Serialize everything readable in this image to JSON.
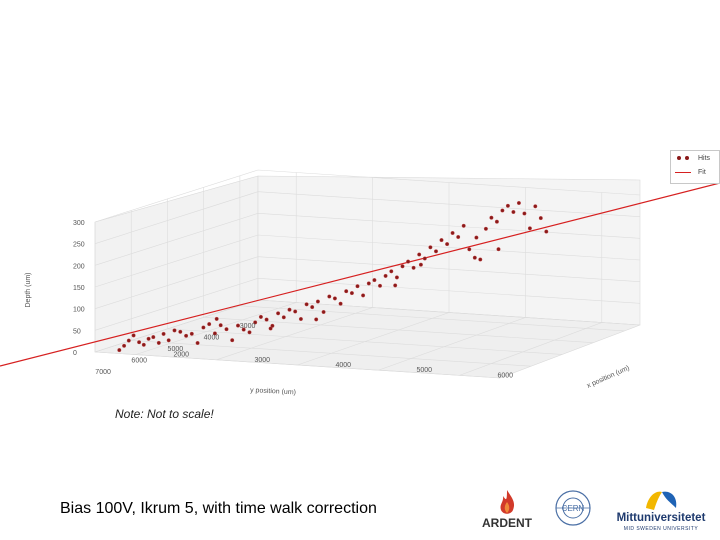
{
  "chart_data": {
    "type": "scatter",
    "projection": "3d",
    "xlabel": "x position (um)",
    "ylabel": "y position (um)",
    "zlabel": "Depth (um)",
    "x_ticks": [
      "2000",
      "3000",
      "4000",
      "5000",
      "6000"
    ],
    "y_ticks": [
      "7000",
      "6000",
      "5000",
      "4000",
      "3000"
    ],
    "z_ticks": [
      "0",
      "50",
      "100",
      "150",
      "200",
      "250",
      "300"
    ],
    "legend": {
      "placement": "top-right",
      "entries": [
        "Hits",
        "Fit"
      ]
    },
    "grid": true,
    "series": [
      {
        "name": "Hits",
        "marker": "dot",
        "color": "#8b1a1a",
        "points": [
          [
            1800,
            7000,
            8
          ],
          [
            1850,
            6980,
            18
          ],
          [
            1900,
            6960,
            30
          ],
          [
            1950,
            6940,
            42
          ],
          [
            2000,
            6900,
            26
          ],
          [
            2050,
            6880,
            20
          ],
          [
            2100,
            6860,
            34
          ],
          [
            2150,
            6840,
            38
          ],
          [
            2200,
            6800,
            24
          ],
          [
            2250,
            6780,
            45
          ],
          [
            2300,
            6750,
            30
          ],
          [
            2350,
            6700,
            52
          ],
          [
            2400,
            6650,
            48
          ],
          [
            2450,
            6600,
            38
          ],
          [
            2500,
            6550,
            42
          ],
          [
            2550,
            6500,
            20
          ],
          [
            2600,
            6450,
            55
          ],
          [
            2650,
            6400,
            62
          ],
          [
            2700,
            6350,
            40
          ],
          [
            2750,
            6300,
            58
          ],
          [
            2800,
            6250,
            48
          ],
          [
            2850,
            6200,
            22
          ],
          [
            2900,
            6150,
            55
          ],
          [
            2950,
            6100,
            45
          ],
          [
            3000,
            6050,
            38
          ],
          [
            3050,
            6000,
            60
          ],
          [
            3100,
            5950,
            72
          ],
          [
            3150,
            5900,
            65
          ],
          [
            3200,
            5850,
            50
          ],
          [
            3250,
            5800,
            78
          ],
          [
            3300,
            5750,
            68
          ],
          [
            3350,
            5700,
            85
          ],
          [
            3400,
            5650,
            80
          ],
          [
            3450,
            5600,
            62
          ],
          [
            3500,
            5550,
            95
          ],
          [
            3550,
            5500,
            88
          ],
          [
            3600,
            5450,
            100
          ],
          [
            3650,
            5400,
            75
          ],
          [
            3700,
            5350,
            110
          ],
          [
            3750,
            5300,
            105
          ],
          [
            3800,
            5250,
            92
          ],
          [
            3850,
            5200,
            120
          ],
          [
            3900,
            5150,
            115
          ],
          [
            3950,
            5100,
            130
          ],
          [
            4000,
            5050,
            108
          ],
          [
            4050,
            5000,
            135
          ],
          [
            4100,
            4950,
            142
          ],
          [
            4150,
            4900,
            128
          ],
          [
            4200,
            4850,
            150
          ],
          [
            4250,
            4800,
            160
          ],
          [
            4300,
            4750,
            145
          ],
          [
            4350,
            4700,
            170
          ],
          [
            4400,
            4650,
            180
          ],
          [
            4450,
            4600,
            165
          ],
          [
            4500,
            4550,
            195
          ],
          [
            4550,
            4500,
            185
          ],
          [
            4600,
            4450,
            210
          ],
          [
            4650,
            4400,
            200
          ],
          [
            4700,
            4350,
            225
          ],
          [
            4750,
            4300,
            215
          ],
          [
            4800,
            4250,
            240
          ],
          [
            4850,
            4200,
            230
          ],
          [
            4900,
            4150,
            255
          ],
          [
            4950,
            4100,
            200
          ],
          [
            5000,
            4050,
            180
          ],
          [
            5050,
            4000,
            175
          ],
          [
            5100,
            3950,
            245
          ],
          [
            5150,
            3900,
            270
          ],
          [
            5200,
            3850,
            260
          ],
          [
            5250,
            3800,
            285
          ],
          [
            5300,
            3750,
            295
          ],
          [
            5350,
            3700,
            280
          ],
          [
            5400,
            3650,
            300
          ],
          [
            5450,
            3600,
            275
          ],
          [
            5500,
            3550,
            240
          ],
          [
            5550,
            3500,
            290
          ],
          [
            5600,
            3450,
            262
          ],
          [
            5650,
            3400,
            230
          ],
          [
            4300,
            4800,
            128
          ],
          [
            3200,
            5900,
            45
          ],
          [
            2700,
            6300,
            72
          ],
          [
            3600,
            5500,
            60
          ],
          [
            4500,
            4500,
            170
          ],
          [
            5000,
            4000,
            225
          ],
          [
            5200,
            3800,
            195
          ]
        ]
      },
      {
        "name": "Fit",
        "style": "line",
        "color": "#d62020"
      }
    ]
  },
  "note": "Note: Not to scale!",
  "caption": "Bias 100V, Ikrum 5, with time walk correction",
  "logos": {
    "ardent": "ARDENT",
    "cern": "CERN",
    "miun": "Mittuniversitetet",
    "miun_sub": "MID SWEDEN UNIVERSITY"
  }
}
